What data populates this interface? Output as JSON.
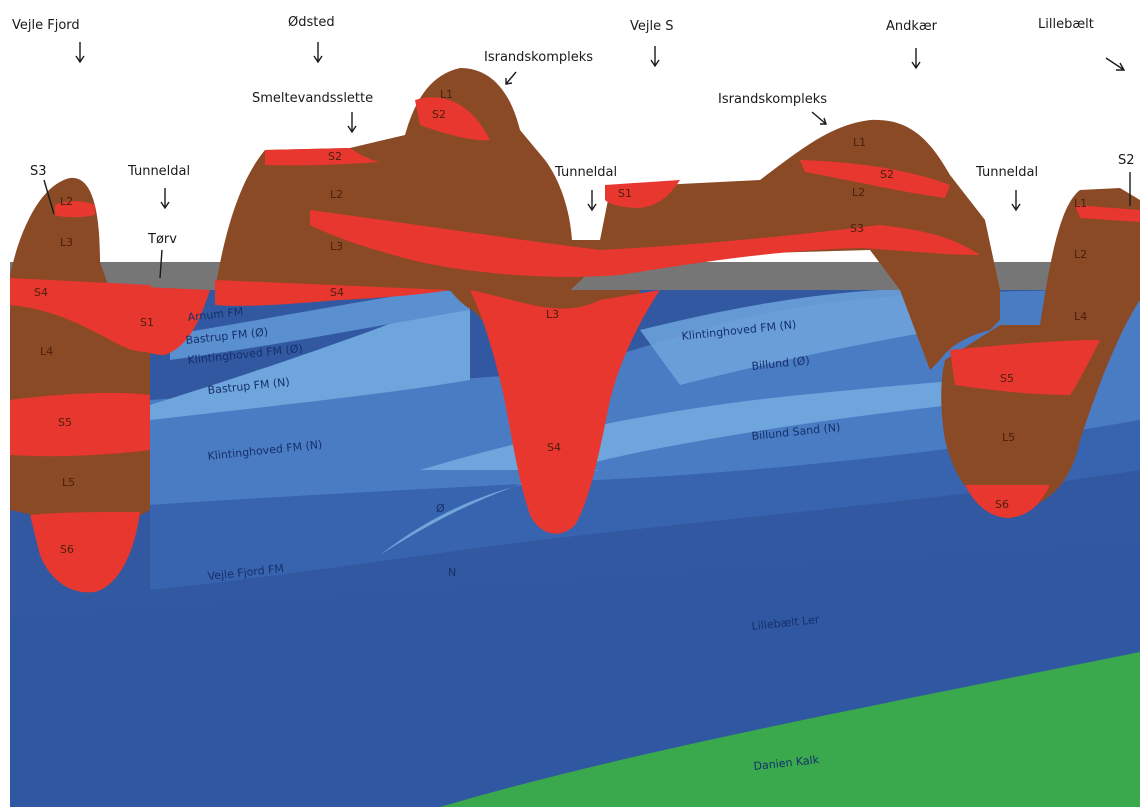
{
  "locations": {
    "vejle_fjord": "Vejle Fjord",
    "odsted": "Ødsted",
    "vejle_s": "Vejle S",
    "andkaer": "Andkær",
    "lillebaelt": "Lillebælt"
  },
  "annotations": {
    "s3_left": "S3",
    "tunneldal_1": "Tunneldal",
    "torv": "Tørv",
    "smeltevandsslette": "Smeltevandsslette",
    "israndskompleks_1": "Israndskompleks",
    "tunneldal_2": "Tunneldal",
    "israndskompleks_2": "Israndskompleks",
    "tunneldal_3": "Tunneldal",
    "s2_right": "S2"
  },
  "glacial_units": {
    "l1": "L1",
    "l2": "L2",
    "l3": "L3",
    "l4": "L4",
    "l5": "L5",
    "s1": "S1",
    "s2": "S2",
    "s3": "S3",
    "s4": "S4",
    "s5": "S5",
    "s6": "S6"
  },
  "formations": {
    "arnum": "Arnum FM",
    "bastrup_o": "Bastrup FM (Ø)",
    "klintinghoved_o": "Klintinghoved FM (Ø)",
    "bastrup_n": "Bastrup FM (N)",
    "klintinghoved_n_left": "Klintinghoved FM (N)",
    "klintinghoved_n_right": "Klintinghoved FM (N)",
    "billund_o": "Billund (Ø)",
    "billund_sand_n": "Billund Sand (N)",
    "o": "Ø",
    "n": "N",
    "vejle_fjord_fm": "Vejle Fjord FM",
    "lillebaelt_ler": "Lillebælt Ler",
    "danien_kalk": "Danien Kalk"
  },
  "colors": {
    "till_brown": "#8b4a26",
    "sand_red": "#e8372f",
    "dark_blue": "#3158a0",
    "mid_blue": "#4a7cc4",
    "light_blue": "#6fa5dd",
    "green": "#3aa84c",
    "grey": "#767676"
  }
}
